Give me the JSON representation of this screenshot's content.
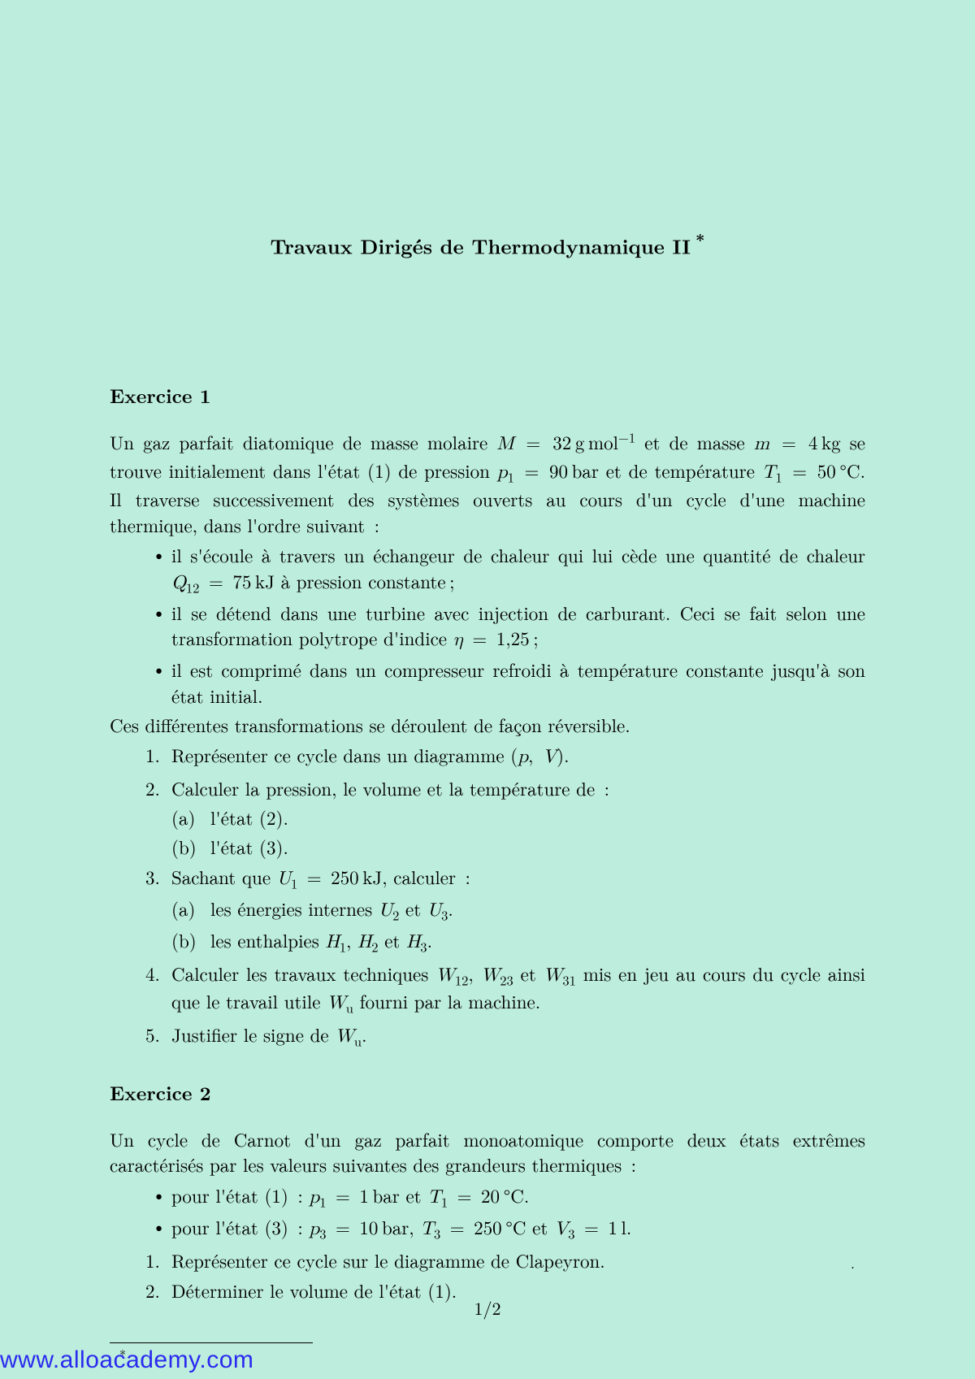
{
  "colors": {
    "background": "#bdeddc",
    "text": "#000000",
    "link": "#2a2af0"
  },
  "title": "Travaux Dirigés de Thermodynamique II",
  "ex1": {
    "heading": "Exercice 1",
    "bullets_intro_close": "Ces différentes transformations se déroulent de façon réversible."
  },
  "ex2": {
    "heading": "Exercice 2"
  },
  "page_number": "1/2",
  "watermark": "www.alloacademy.com",
  "footnote_mark": "*"
}
